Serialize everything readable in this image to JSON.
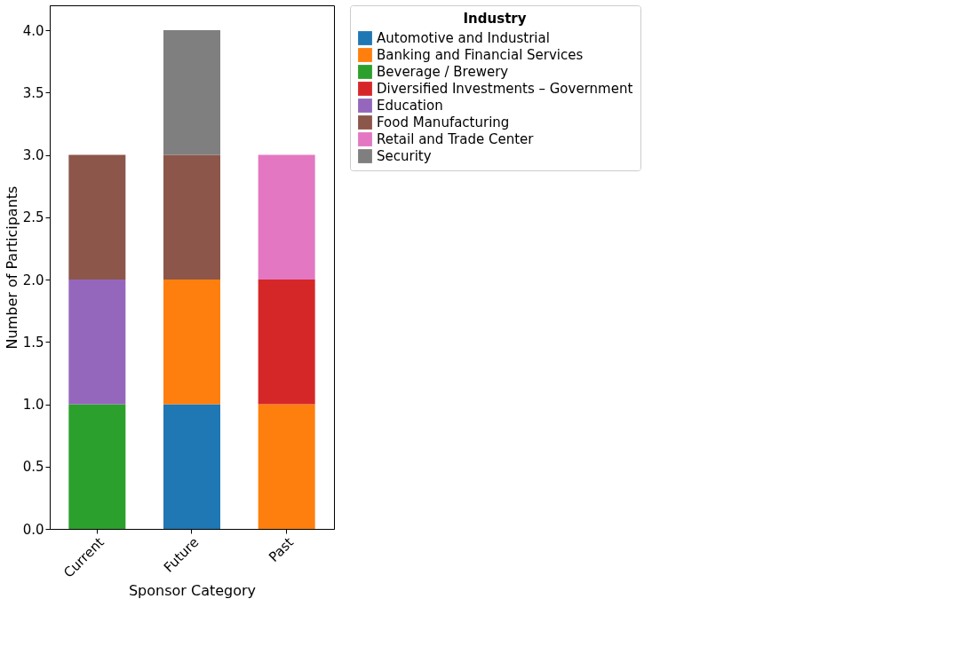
{
  "chart_data": {
    "type": "bar",
    "stacked": true,
    "xlabel": "Sponsor Category",
    "ylabel": "Number of Participants",
    "legend_title": "Industry",
    "legend": "right",
    "grid": false,
    "categories": [
      "Current",
      "Future",
      "Past"
    ],
    "ylim": [
      0,
      4.2
    ],
    "yticks": [
      {
        "value": 0,
        "label": "0.0"
      },
      {
        "value": 0.5,
        "label": "0.5"
      },
      {
        "value": 1,
        "label": "1.0"
      },
      {
        "value": 1.5,
        "label": "1.5"
      },
      {
        "value": 2,
        "label": "2.0"
      },
      {
        "value": 2.5,
        "label": "2.5"
      },
      {
        "value": 3,
        "label": "3.0"
      },
      {
        "value": 3.5,
        "label": "3.5"
      },
      {
        "value": 4,
        "label": "4.0"
      }
    ],
    "series": [
      {
        "name": "Automotive and Industrial",
        "color": "#1f77b4",
        "values": [
          0,
          1,
          0
        ]
      },
      {
        "name": "Banking and Financial Services",
        "color": "#ff7f0e",
        "values": [
          0,
          1,
          1
        ]
      },
      {
        "name": "Beverage / Brewery",
        "color": "#2ca02c",
        "values": [
          1,
          0,
          0
        ]
      },
      {
        "name": "Diversified Investments – Government",
        "color": "#d62728",
        "values": [
          0,
          0,
          1
        ]
      },
      {
        "name": "Education",
        "color": "#9467bd",
        "values": [
          1,
          0,
          0
        ]
      },
      {
        "name": "Food Manufacturing",
        "color": "#8c564b",
        "values": [
          1,
          1,
          0
        ]
      },
      {
        "name": "Retail and Trade Center",
        "color": "#e377c2",
        "values": [
          0,
          0,
          1
        ]
      },
      {
        "name": "Security",
        "color": "#7f7f7f",
        "values": [
          0,
          1,
          0
        ]
      }
    ]
  }
}
